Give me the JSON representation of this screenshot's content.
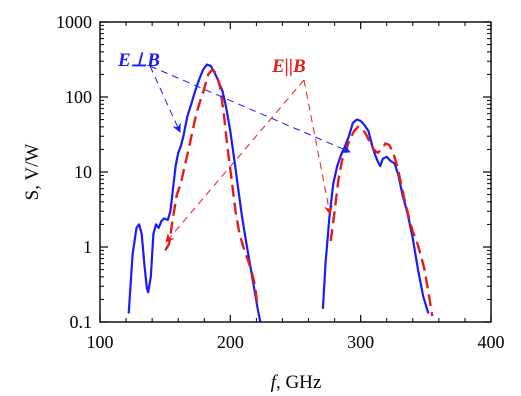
{
  "chart_data": {
    "type": "line",
    "xlabel_var": "f",
    "xlabel_unit": ", GHz",
    "ylabel": "S, V/W",
    "xlim": [
      100,
      400
    ],
    "ylim": [
      0.1,
      1000
    ],
    "y_scale": "log",
    "grid": false,
    "x_ticks": [
      "100",
      "200",
      "300",
      "400"
    ],
    "y_ticks": [
      "0.1",
      "1",
      "10",
      "100",
      "1000"
    ],
    "annotations": [
      {
        "text": "E⊥B",
        "color": "#1a1aff"
      },
      {
        "text": "E||B",
        "color": "#e31b1b"
      }
    ],
    "series": [
      {
        "color": "#1a1aff",
        "style": "solid",
        "segments": [
          [
            [
              122,
              0.13
            ],
            [
              125,
              0.8
            ],
            [
              128,
              1.8
            ],
            [
              130,
              2.0
            ],
            [
              132,
              1.5
            ],
            [
              134,
              0.6
            ],
            [
              136,
              0.28
            ],
            [
              137,
              0.25
            ],
            [
              139,
              0.4
            ],
            [
              141,
              1.5
            ],
            [
              143,
              2.0
            ],
            [
              145,
              1.8
            ],
            [
              147,
              2.2
            ],
            [
              149,
              2.4
            ],
            [
              152,
              2.3
            ],
            [
              154,
              3.0
            ],
            [
              156,
              6
            ],
            [
              158,
              12
            ],
            [
              160,
              18
            ],
            [
              162,
              22
            ],
            [
              164,
              30
            ],
            [
              167,
              55
            ],
            [
              170,
              80
            ],
            [
              173,
              120
            ],
            [
              176,
              170
            ],
            [
              179,
              230
            ],
            [
              182,
              270
            ],
            [
              185,
              260
            ],
            [
              188,
              210
            ],
            [
              191,
              160
            ],
            [
              194,
              120
            ],
            [
              197,
              70
            ],
            [
              200,
              35
            ],
            [
              203,
              15
            ],
            [
              206,
              6
            ],
            [
              209,
              2.5
            ],
            [
              212,
              1.2
            ],
            [
              215,
              0.6
            ],
            [
              218,
              0.3
            ],
            [
              221,
              0.15
            ],
            [
              223,
              0.1
            ]
          ],
          [
            [
              271,
              0.15
            ],
            [
              273,
              0.6
            ],
            [
              276,
              2.5
            ],
            [
              279,
              7
            ],
            [
              282,
              12
            ],
            [
              285,
              17
            ],
            [
              288,
              22
            ],
            [
              291,
              30
            ],
            [
              294,
              45
            ],
            [
              297,
              50
            ],
            [
              300,
              48
            ],
            [
              303,
              42
            ],
            [
              306,
              35
            ],
            [
              309,
              22
            ],
            [
              311,
              17
            ],
            [
              313,
              14
            ],
            [
              315,
              12
            ],
            [
              317,
              15
            ],
            [
              320,
              16
            ],
            [
              323,
              14
            ],
            [
              326,
              13
            ],
            [
              329,
              9
            ],
            [
              332,
              5
            ],
            [
              336,
              2.8
            ],
            [
              340,
              1.3
            ],
            [
              344,
              0.5
            ],
            [
              348,
              0.22
            ],
            [
              352,
              0.13
            ]
          ]
        ]
      },
      {
        "color": "#e31b1b",
        "style": "dashed",
        "segments": [
          [
            [
              150,
              0.9
            ],
            [
              153,
              1.1
            ],
            [
              156,
              2.5
            ],
            [
              159,
              5
            ],
            [
              162,
              7
            ],
            [
              165,
              12
            ],
            [
              168,
              20
            ],
            [
              171,
              35
            ],
            [
              174,
              60
            ],
            [
              177,
              90
            ],
            [
              180,
              130
            ],
            [
              183,
              200
            ],
            [
              186,
              230
            ],
            [
              189,
              210
            ],
            [
              192,
              140
            ],
            [
              195,
              60
            ],
            [
              198,
              20
            ],
            [
              201,
              8
            ],
            [
              204,
              3
            ],
            [
              207,
              1.5
            ],
            [
              210,
              1.0
            ],
            [
              213,
              0.7
            ],
            [
              216,
              0.5
            ],
            [
              219,
              0.3
            ],
            [
              221,
              0.15
            ]
          ],
          [
            [
              277,
              1.2
            ],
            [
              280,
              3
            ],
            [
              283,
              8
            ],
            [
              286,
              15
            ],
            [
              289,
              20
            ],
            [
              292,
              28
            ],
            [
              295,
              35
            ],
            [
              298,
              40
            ],
            [
              301,
              38
            ],
            [
              304,
              32
            ],
            [
              307,
              25
            ],
            [
              310,
              20
            ],
            [
              313,
              18
            ],
            [
              316,
              20
            ],
            [
              319,
              24
            ],
            [
              322,
              23
            ],
            [
              325,
              18
            ],
            [
              328,
              12
            ],
            [
              331,
              7
            ],
            [
              334,
              4
            ],
            [
              337,
              2.5
            ],
            [
              340,
              1.6
            ],
            [
              343,
              1.2
            ],
            [
              346,
              0.8
            ],
            [
              349,
              0.5
            ],
            [
              352,
              0.25
            ],
            [
              355,
              0.12
            ]
          ]
        ]
      }
    ]
  }
}
